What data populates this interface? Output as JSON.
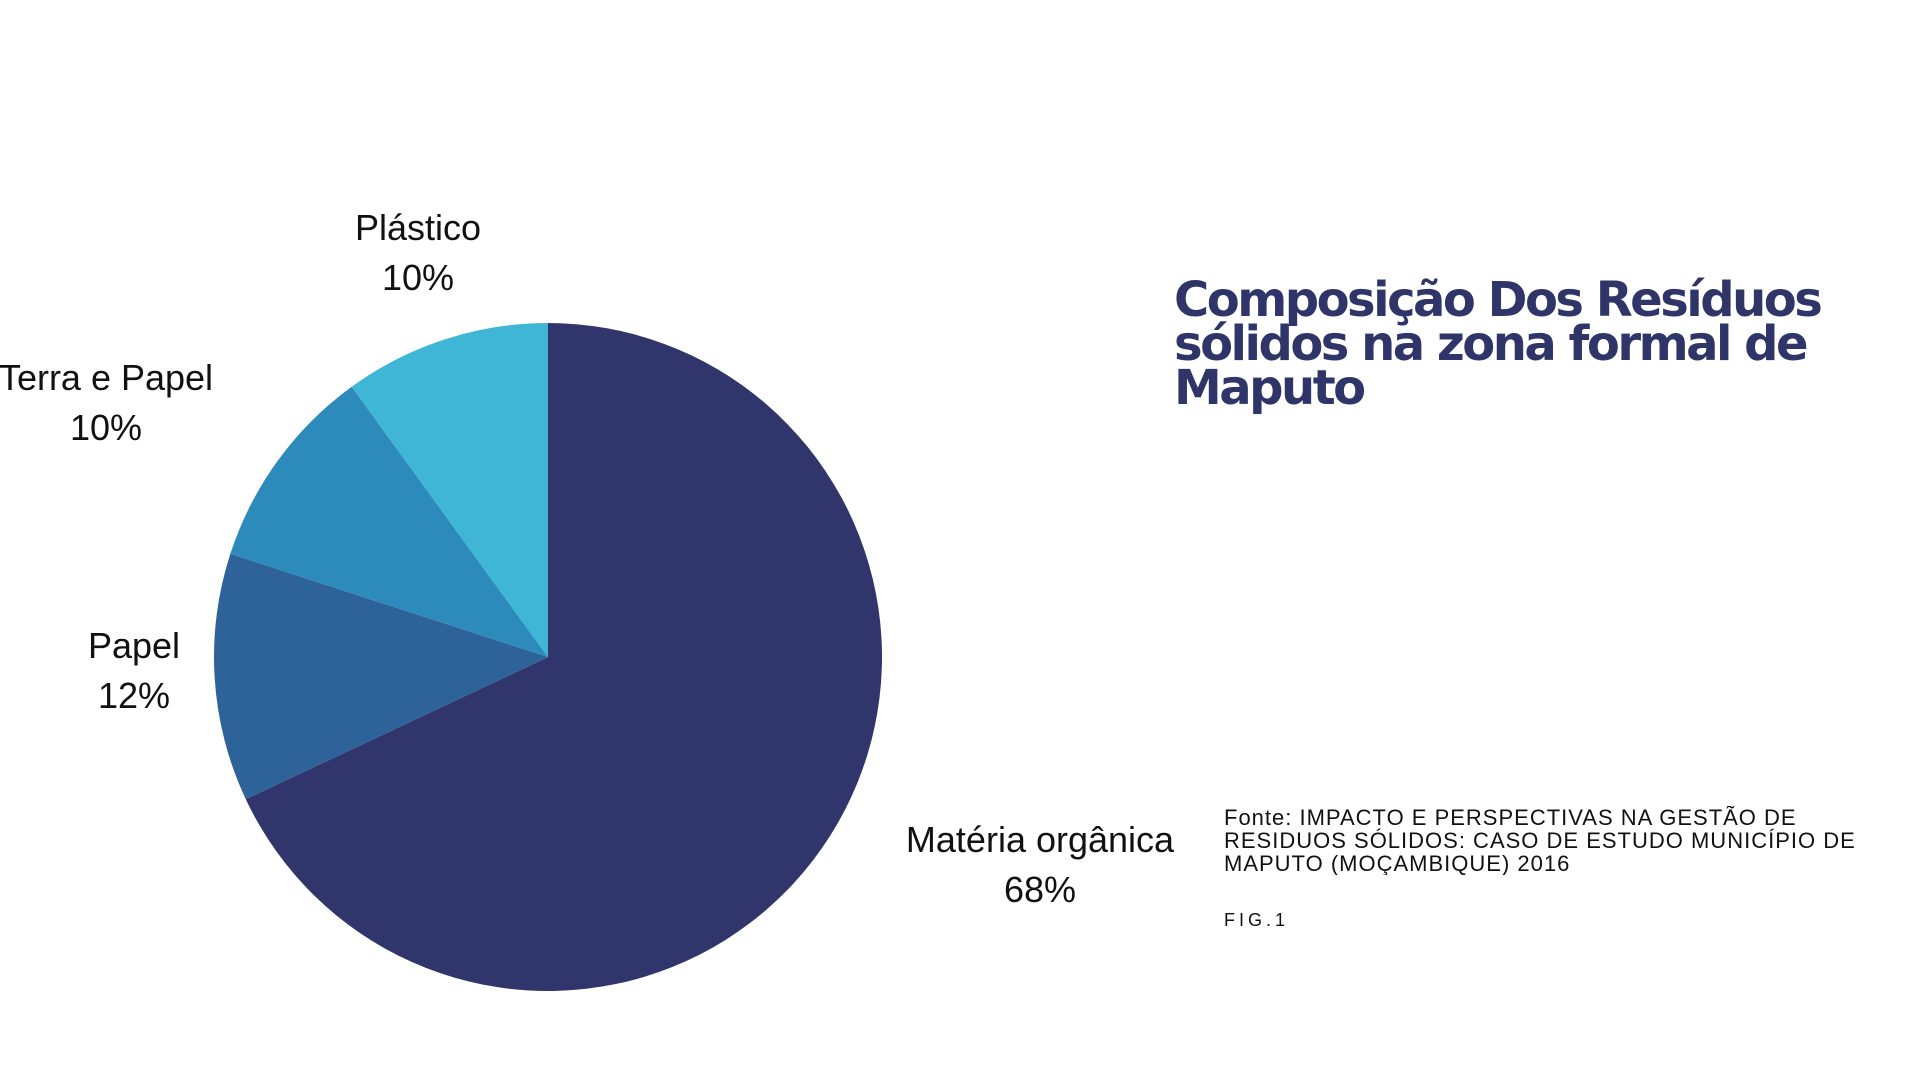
{
  "title": {
    "lines": [
      "Composição Dos Resíduos",
      "sólidos na zona formal de",
      "Maputo"
    ]
  },
  "source": {
    "lines": [
      "Fonte: IMPACTO E PERSPECTIVAS NA GESTÃO DE",
      "RESIDUOS SÓLIDOS: CASO DE ESTUDO MUNICÍPIO DE",
      "MAPUTO (MOÇAMBIQUE) 2016"
    ]
  },
  "figure_label": "FIG.1",
  "chart_data": {
    "type": "pie",
    "slices": [
      {
        "label": "Matéria orgânica",
        "value": 68,
        "value_label": "68%",
        "color": "#30356b"
      },
      {
        "label": "Papel",
        "value": 12,
        "value_label": "12%",
        "color": "#2d6399"
      },
      {
        "label": "Terra e Papel",
        "value": 10,
        "value_label": "10%",
        "color": "#2d8bbb"
      },
      {
        "label": "Plástico",
        "value": 10,
        "value_label": "10%",
        "color": "#40b6d6"
      }
    ],
    "start_angle_deg": 0,
    "direction": "clockwise",
    "legend": "none"
  }
}
